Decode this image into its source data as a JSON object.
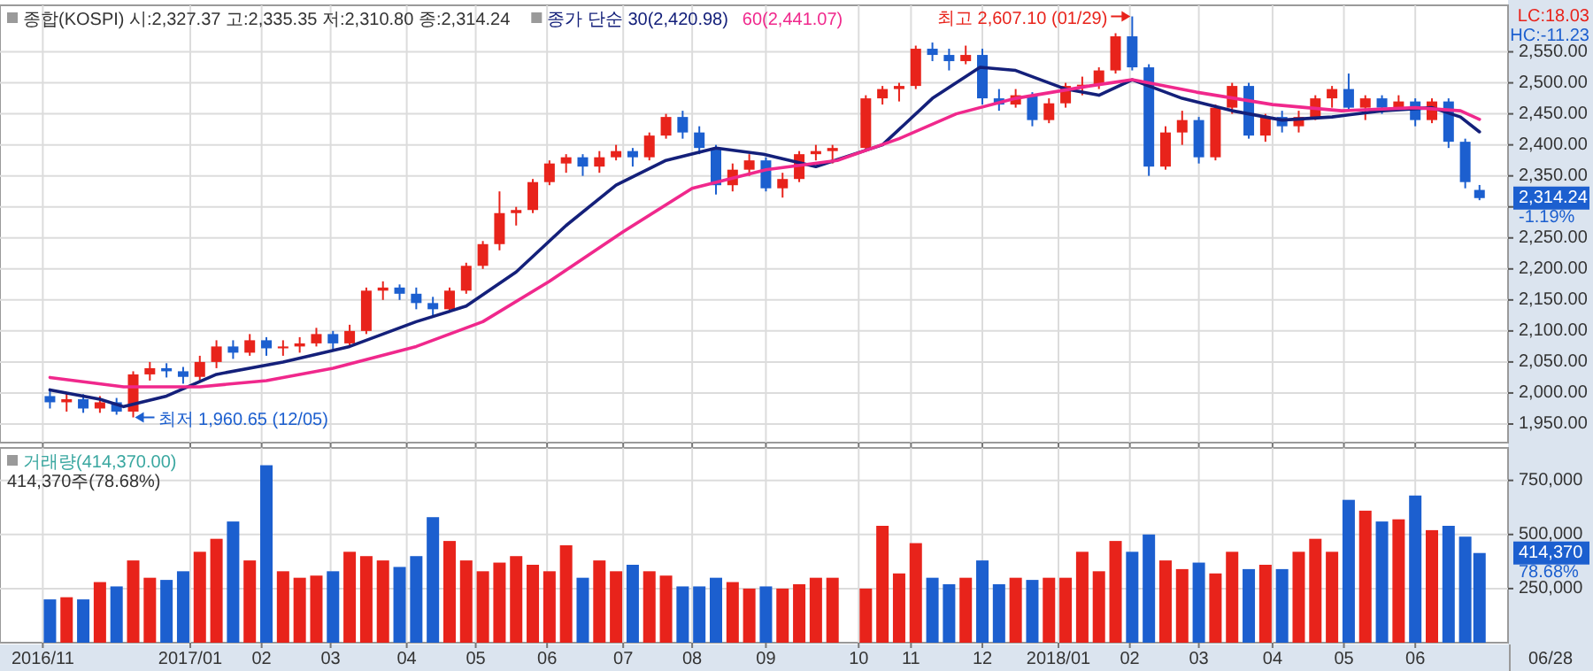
{
  "chart_data": [
    {
      "type": "candlestick",
      "title": "종합(KOSPI) 시:2,327.37 고:2,335.35 저:2,310.80 종:2,314.24",
      "legend": "top",
      "grid": true,
      "tick_labels": "y",
      "x": [
        "2016-11-04",
        "2016-11-11",
        "2016-11-18",
        "2016-11-25",
        "2016-12-02",
        "2016-12-09",
        "2016-12-16",
        "2016-12-23",
        "2016-12-30",
        "2017-01-06",
        "2017-01-13",
        "2017-01-20",
        "2017-01-27",
        "2017-02-03",
        "2017-02-10",
        "2017-02-17",
        "2017-02-24",
        "2017-03-03",
        "2017-03-10",
        "2017-03-17",
        "2017-03-24",
        "2017-03-31",
        "2017-04-07",
        "2017-04-14",
        "2017-04-21",
        "2017-04-28",
        "2017-05-05",
        "2017-05-12",
        "2017-05-19",
        "2017-05-26",
        "2017-06-02",
        "2017-06-09",
        "2017-06-16",
        "2017-06-23",
        "2017-06-30",
        "2017-07-07",
        "2017-07-14",
        "2017-07-21",
        "2017-07-28",
        "2017-08-04",
        "2017-08-11",
        "2017-08-18",
        "2017-08-25",
        "2017-09-01",
        "2017-09-08",
        "2017-09-15",
        "2017-09-22",
        "2017-09-29",
        "2017-10-13",
        "2017-10-20",
        "2017-10-27",
        "2017-11-03",
        "2017-11-10",
        "2017-11-17",
        "2017-11-24",
        "2017-12-01",
        "2017-12-08",
        "2017-12-15",
        "2017-12-22",
        "2017-12-29",
        "2018-01-05",
        "2018-01-12",
        "2018-01-19",
        "2018-01-26",
        "2018-02-02",
        "2018-02-09",
        "2018-02-16",
        "2018-02-23",
        "2018-03-02",
        "2018-03-09",
        "2018-03-16",
        "2018-03-23",
        "2018-03-30",
        "2018-04-06",
        "2018-04-13",
        "2018-04-20",
        "2018-04-27",
        "2018-05-04",
        "2018-05-11",
        "2018-05-18",
        "2018-05-25",
        "2018-06-01",
        "2018-06-08",
        "2018-06-15",
        "2018-06-22",
        "2018-06-28"
      ],
      "ohlc": [
        [
          1995,
          2005,
          1975,
          1985
        ],
        [
          1985,
          2000,
          1970,
          1990
        ],
        [
          1990,
          1998,
          1968,
          1975
        ],
        [
          1975,
          1995,
          1968,
          1985
        ],
        [
          1985,
          1992,
          1965,
          1970
        ],
        [
          1970,
          2035,
          1960.65,
          2030
        ],
        [
          2030,
          2050,
          2020,
          2040
        ],
        [
          2040,
          2048,
          2025,
          2035
        ],
        [
          2035,
          2042,
          2015,
          2026
        ],
        [
          2026,
          2060,
          2020,
          2050
        ],
        [
          2050,
          2085,
          2040,
          2075
        ],
        [
          2075,
          2085,
          2055,
          2065
        ],
        [
          2065,
          2095,
          2060,
          2085
        ],
        [
          2085,
          2090,
          2060,
          2072
        ],
        [
          2072,
          2085,
          2060,
          2075
        ],
        [
          2075,
          2090,
          2065,
          2080
        ],
        [
          2080,
          2105,
          2075,
          2095
        ],
        [
          2095,
          2100,
          2070,
          2080
        ],
        [
          2080,
          2110,
          2075,
          2100
        ],
        [
          2100,
          2170,
          2095,
          2165
        ],
        [
          2165,
          2180,
          2150,
          2170
        ],
        [
          2170,
          2175,
          2150,
          2160
        ],
        [
          2160,
          2170,
          2135,
          2145
        ],
        [
          2145,
          2155,
          2125,
          2135
        ],
        [
          2135,
          2170,
          2130,
          2165
        ],
        [
          2165,
          2210,
          2160,
          2205
        ],
        [
          2205,
          2245,
          2200,
          2240
        ],
        [
          2240,
          2325,
          2230,
          2290
        ],
        [
          2290,
          2300,
          2270,
          2295
        ],
        [
          2295,
          2345,
          2290,
          2340
        ],
        [
          2340,
          2375,
          2335,
          2370
        ],
        [
          2370,
          2385,
          2355,
          2380
        ],
        [
          2380,
          2385,
          2350,
          2365
        ],
        [
          2365,
          2390,
          2355,
          2380
        ],
        [
          2380,
          2400,
          2375,
          2390
        ],
        [
          2390,
          2395,
          2365,
          2380
        ],
        [
          2380,
          2420,
          2375,
          2415
        ],
        [
          2415,
          2450,
          2410,
          2445
        ],
        [
          2445,
          2455,
          2410,
          2420
        ],
        [
          2420,
          2430,
          2385,
          2395
        ],
        [
          2395,
          2400,
          2320,
          2335
        ],
        [
          2335,
          2370,
          2325,
          2360
        ],
        [
          2360,
          2385,
          2350,
          2375
        ],
        [
          2375,
          2380,
          2325,
          2330
        ],
        [
          2330,
          2355,
          2315,
          2345
        ],
        [
          2345,
          2390,
          2340,
          2385
        ],
        [
          2385,
          2400,
          2375,
          2390
        ],
        [
          2390,
          2400,
          2370,
          2395
        ],
        [
          2395,
          2480,
          2390,
          2475
        ],
        [
          2475,
          2495,
          2465,
          2490
        ],
        [
          2490,
          2500,
          2470,
          2495
        ],
        [
          2495,
          2560,
          2490,
          2555
        ],
        [
          2555,
          2565,
          2535,
          2545
        ],
        [
          2545,
          2555,
          2520,
          2535
        ],
        [
          2535,
          2560,
          2530,
          2545
        ],
        [
          2545,
          2555,
          2465,
          2475
        ],
        [
          2475,
          2490,
          2455,
          2465
        ],
        [
          2465,
          2490,
          2460,
          2480
        ],
        [
          2480,
          2485,
          2430,
          2440
        ],
        [
          2440,
          2475,
          2435,
          2467
        ],
        [
          2467,
          2500,
          2460,
          2495
        ],
        [
          2495,
          2510,
          2480,
          2497
        ],
        [
          2497,
          2525,
          2490,
          2520
        ],
        [
          2520,
          2580,
          2515,
          2575
        ],
        [
          2575,
          2607.1,
          2520,
          2525
        ],
        [
          2525,
          2530,
          2350,
          2365
        ],
        [
          2365,
          2430,
          2360,
          2420
        ],
        [
          2420,
          2455,
          2400,
          2440
        ],
        [
          2440,
          2445,
          2370,
          2380
        ],
        [
          2380,
          2465,
          2375,
          2460
        ],
        [
          2460,
          2500,
          2450,
          2495
        ],
        [
          2495,
          2500,
          2410,
          2415
        ],
        [
          2415,
          2450,
          2405,
          2445
        ],
        [
          2445,
          2455,
          2420,
          2430
        ],
        [
          2430,
          2455,
          2420,
          2445
        ],
        [
          2445,
          2480,
          2440,
          2475
        ],
        [
          2475,
          2495,
          2460,
          2490
        ],
        [
          2490,
          2515,
          2455,
          2460
        ],
        [
          2460,
          2480,
          2440,
          2475
        ],
        [
          2475,
          2480,
          2450,
          2460
        ],
        [
          2460,
          2480,
          2455,
          2470
        ],
        [
          2470,
          2475,
          2430,
          2440
        ],
        [
          2440,
          2475,
          2435,
          2470
        ],
        [
          2470,
          2475,
          2395,
          2405
        ],
        [
          2405,
          2410,
          2330,
          2340
        ],
        [
          2327.37,
          2335.35,
          2310.8,
          2314.24
        ]
      ],
      "colors": [
        "#1c5fcf",
        "#e8231b",
        "#1c5fcf",
        "#e8231b",
        "#1c5fcf",
        "#e8231b",
        "#e8231b",
        "#1c5fcf",
        "#1c5fcf",
        "#e8231b",
        "#e8231b",
        "#1c5fcf",
        "#e8231b",
        "#1c5fcf",
        "#e8231b",
        "#e8231b",
        "#e8231b",
        "#1c5fcf",
        "#e8231b",
        "#e8231b",
        "#e8231b",
        "#1c5fcf",
        "#1c5fcf",
        "#1c5fcf",
        "#e8231b",
        "#e8231b",
        "#e8231b",
        "#e8231b",
        "#e8231b",
        "#e8231b",
        "#e8231b",
        "#e8231b",
        "#1c5fcf",
        "#e8231b",
        "#e8231b",
        "#1c5fcf",
        "#e8231b",
        "#e8231b",
        "#1c5fcf",
        "#1c5fcf",
        "#1c5fcf",
        "#e8231b",
        "#e8231b",
        "#1c5fcf",
        "#e8231b",
        "#e8231b",
        "#e8231b",
        "#e8231b",
        "#e8231b",
        "#e8231b",
        "#e8231b",
        "#e8231b",
        "#1c5fcf",
        "#1c5fcf",
        "#e8231b",
        "#1c5fcf",
        "#1c5fcf",
        "#e8231b",
        "#1c5fcf",
        "#e8231b",
        "#e8231b",
        "#e8231b",
        "#e8231b",
        "#e8231b",
        "#1c5fcf",
        "#1c5fcf",
        "#e8231b",
        "#e8231b",
        "#1c5fcf",
        "#e8231b",
        "#e8231b",
        "#1c5fcf",
        "#e8231b",
        "#1c5fcf",
        "#e8231b",
        "#e8231b",
        "#e8231b",
        "#1c5fcf",
        "#e8231b",
        "#1c5fcf",
        "#e8231b",
        "#1c5fcf",
        "#e8231b",
        "#1c5fcf",
        "#1c5fcf",
        "#1c5fcf"
      ],
      "series": [
        {
          "name": "종가 단순 30(2,420.98)",
          "type": "line",
          "color": "#14207a",
          "x": [
            "2016-11-04",
            "2016-11-25",
            "2016-12-05",
            "2016-12-23",
            "2017-01-13",
            "2017-02-10",
            "2017-03-10",
            "2017-04-07",
            "2017-04-28",
            "2017-05-19",
            "2017-06-09",
            "2017-06-30",
            "2017-07-21",
            "2017-08-11",
            "2017-08-31",
            "2017-09-22",
            "2017-10-20",
            "2017-11-10",
            "2017-11-30",
            "2017-12-15",
            "2018-01-05",
            "2018-01-19",
            "2018-02-02",
            "2018-02-23",
            "2018-03-16",
            "2018-04-06",
            "2018-04-27",
            "2018-05-18",
            "2018-06-08",
            "2018-06-20",
            "2018-06-28"
          ],
          "values": [
            2005,
            1990,
            1978,
            1995,
            2030,
            2050,
            2075,
            2115,
            2140,
            2195,
            2270,
            2335,
            2375,
            2395,
            2385,
            2365,
            2400,
            2475,
            2525,
            2520,
            2490,
            2480,
            2505,
            2475,
            2455,
            2440,
            2445,
            2455,
            2460,
            2445,
            2420.98
          ]
        },
        {
          "name": "60(2,441.07)",
          "type": "line",
          "color": "#f0288c",
          "x": [
            "2016-11-04",
            "2016-12-05",
            "2017-01-06",
            "2017-02-03",
            "2017-03-03",
            "2017-04-07",
            "2017-05-05",
            "2017-06-02",
            "2017-07-03",
            "2017-08-01",
            "2017-09-01",
            "2017-10-01",
            "2017-10-27",
            "2017-11-20",
            "2017-12-15",
            "2018-01-15",
            "2018-02-02",
            "2018-03-01",
            "2018-04-02",
            "2018-05-01",
            "2018-06-01",
            "2018-06-20",
            "2018-06-28"
          ],
          "values": [
            2025,
            2010,
            2010,
            2020,
            2040,
            2075,
            2115,
            2180,
            2260,
            2330,
            2360,
            2375,
            2410,
            2450,
            2475,
            2495,
            2505,
            2485,
            2465,
            2455,
            2460,
            2455,
            2441.07
          ]
        }
      ],
      "xlim": [
        "2016-10-14",
        "2018-07-10"
      ],
      "xticks": [
        {
          "value": "2016-11-01",
          "label": null
        },
        {
          "value": "2017-01-02",
          "label": null
        },
        {
          "value": "2017-02-01",
          "label": null
        },
        {
          "value": "2017-03-02",
          "label": null
        },
        {
          "value": "2017-04-03",
          "label": null
        },
        {
          "value": "2017-05-02",
          "label": null
        },
        {
          "value": "2017-06-01",
          "label": null
        },
        {
          "value": "2017-07-03",
          "label": null
        },
        {
          "value": "2017-08-01",
          "label": null
        },
        {
          "value": "2017-09-01",
          "label": null
        },
        {
          "value": "2017-10-10",
          "label": null
        },
        {
          "value": "2017-11-01",
          "label": null
        },
        {
          "value": "2017-12-01",
          "label": null
        },
        {
          "value": "2018-01-02",
          "label": null
        },
        {
          "value": "2018-02-01",
          "label": null
        },
        {
          "value": "2018-03-02",
          "label": null
        },
        {
          "value": "2018-04-02",
          "label": null
        },
        {
          "value": "2018-05-02",
          "label": null
        },
        {
          "value": "2018-06-01",
          "label": null
        }
      ],
      "ylim": [
        1920,
        2625
      ],
      "yticks": [
        {
          "value": 1950,
          "label": "1,950.00"
        },
        {
          "value": 2000,
          "label": "2,000.00"
        },
        {
          "value": 2050,
          "label": "2,050.00"
        },
        {
          "value": 2100,
          "label": "2,100.00"
        },
        {
          "value": 2150,
          "label": "2,150.00"
        },
        {
          "value": 2200,
          "label": "2,200.00"
        },
        {
          "value": 2250,
          "label": "2,250.00"
        },
        {
          "value": 2300,
          "label": null
        },
        {
          "value": 2350,
          "label": "2,350.00"
        },
        {
          "value": 2400,
          "label": "2,400.00"
        },
        {
          "value": 2450,
          "label": "2,450.00"
        },
        {
          "value": 2500,
          "label": "2,500.00"
        },
        {
          "value": 2550,
          "label": "2,550.00"
        }
      ],
      "annotations": [
        {
          "text": "최고 2,607.10 (01/29)",
          "x": "2018-02-02",
          "y": 2607.1
        },
        {
          "text": "최저 1,960.65 (12/05)",
          "x": "2016-12-09",
          "y": 1960.65
        },
        "LC:18.03",
        "HC:-11.23",
        "2,314.24",
        "-1.19%"
      ]
    },
    {
      "type": "bar",
      "title": "거래량(414,370.00)",
      "subtitle": "414,370주(78.68%)",
      "grid": true,
      "x": [
        "2016-11-04",
        "2016-11-11",
        "2016-11-18",
        "2016-11-25",
        "2016-12-02",
        "2016-12-09",
        "2016-12-16",
        "2016-12-23",
        "2016-12-30",
        "2017-01-06",
        "2017-01-13",
        "2017-01-20",
        "2017-01-27",
        "2017-02-03",
        "2017-02-10",
        "2017-02-17",
        "2017-02-24",
        "2017-03-03",
        "2017-03-10",
        "2017-03-17",
        "2017-03-24",
        "2017-03-31",
        "2017-04-07",
        "2017-04-14",
        "2017-04-21",
        "2017-04-28",
        "2017-05-05",
        "2017-05-12",
        "2017-05-19",
        "2017-05-26",
        "2017-06-02",
        "2017-06-09",
        "2017-06-16",
        "2017-06-23",
        "2017-06-30",
        "2017-07-07",
        "2017-07-14",
        "2017-07-21",
        "2017-07-28",
        "2017-08-04",
        "2017-08-11",
        "2017-08-18",
        "2017-08-25",
        "2017-09-01",
        "2017-09-08",
        "2017-09-15",
        "2017-09-22",
        "2017-09-29",
        "2017-10-13",
        "2017-10-20",
        "2017-10-27",
        "2017-11-03",
        "2017-11-10",
        "2017-11-17",
        "2017-11-24",
        "2017-12-01",
        "2017-12-08",
        "2017-12-15",
        "2017-12-22",
        "2017-12-29",
        "2018-01-05",
        "2018-01-12",
        "2018-01-19",
        "2018-01-26",
        "2018-02-02",
        "2018-02-09",
        "2018-02-16",
        "2018-02-23",
        "2018-03-02",
        "2018-03-09",
        "2018-03-16",
        "2018-03-23",
        "2018-03-30",
        "2018-04-06",
        "2018-04-13",
        "2018-04-20",
        "2018-04-27",
        "2018-05-04",
        "2018-05-11",
        "2018-05-18",
        "2018-05-25",
        "2018-06-01",
        "2018-06-08",
        "2018-06-15",
        "2018-06-22",
        "2018-06-28"
      ],
      "values": [
        200000,
        210000,
        200000,
        280000,
        260000,
        380000,
        300000,
        290000,
        330000,
        420000,
        480000,
        560000,
        380000,
        820000,
        330000,
        300000,
        310000,
        330000,
        420000,
        400000,
        380000,
        350000,
        400000,
        580000,
        470000,
        380000,
        330000,
        370000,
        400000,
        360000,
        330000,
        450000,
        300000,
        380000,
        330000,
        360000,
        330000,
        310000,
        260000,
        260000,
        300000,
        280000,
        250000,
        260000,
        250000,
        270000,
        300000,
        300000,
        250000,
        540000,
        320000,
        460000,
        300000,
        270000,
        300000,
        380000,
        270000,
        300000,
        290000,
        300000,
        300000,
        420000,
        330000,
        470000,
        420000,
        500000,
        380000,
        340000,
        370000,
        320000,
        420000,
        340000,
        360000,
        340000,
        420000,
        480000,
        420000,
        660000,
        610000,
        560000,
        570000,
        680000,
        520000,
        540000,
        490000,
        414370
      ],
      "colors": [
        "#1c5fcf",
        "#e8231b",
        "#1c5fcf",
        "#e8231b",
        "#1c5fcf",
        "#e8231b",
        "#e8231b",
        "#1c5fcf",
        "#1c5fcf",
        "#e8231b",
        "#e8231b",
        "#1c5fcf",
        "#e8231b",
        "#1c5fcf",
        "#e8231b",
        "#e8231b",
        "#e8231b",
        "#1c5fcf",
        "#e8231b",
        "#e8231b",
        "#e8231b",
        "#1c5fcf",
        "#1c5fcf",
        "#1c5fcf",
        "#e8231b",
        "#e8231b",
        "#e8231b",
        "#e8231b",
        "#e8231b",
        "#e8231b",
        "#e8231b",
        "#e8231b",
        "#1c5fcf",
        "#e8231b",
        "#e8231b",
        "#1c5fcf",
        "#e8231b",
        "#e8231b",
        "#1c5fcf",
        "#1c5fcf",
        "#1c5fcf",
        "#e8231b",
        "#e8231b",
        "#1c5fcf",
        "#e8231b",
        "#e8231b",
        "#e8231b",
        "#e8231b",
        "#e8231b",
        "#e8231b",
        "#e8231b",
        "#e8231b",
        "#1c5fcf",
        "#1c5fcf",
        "#e8231b",
        "#1c5fcf",
        "#1c5fcf",
        "#e8231b",
        "#1c5fcf",
        "#e8231b",
        "#e8231b",
        "#e8231b",
        "#e8231b",
        "#e8231b",
        "#1c5fcf",
        "#1c5fcf",
        "#e8231b",
        "#e8231b",
        "#1c5fcf",
        "#e8231b",
        "#e8231b",
        "#1c5fcf",
        "#e8231b",
        "#1c5fcf",
        "#e8231b",
        "#e8231b",
        "#e8231b",
        "#1c5fcf",
        "#e8231b",
        "#1c5fcf",
        "#e8231b",
        "#1c5fcf",
        "#e8231b",
        "#1c5fcf",
        "#1c5fcf",
        "#1c5fcf"
      ],
      "xlim": [
        "2016-10-14",
        "2018-07-10"
      ],
      "xticks": [
        {
          "value": "2016-11-01",
          "label": "2016/11"
        },
        {
          "value": "2017-01-02",
          "label": "2017/01"
        },
        {
          "value": "2017-02-01",
          "label": "02"
        },
        {
          "value": "2017-03-02",
          "label": "03"
        },
        {
          "value": "2017-04-03",
          "label": "04"
        },
        {
          "value": "2017-05-02",
          "label": "05"
        },
        {
          "value": "2017-06-01",
          "label": "06"
        },
        {
          "value": "2017-07-03",
          "label": "07"
        },
        {
          "value": "2017-08-01",
          "label": "08"
        },
        {
          "value": "2017-09-01",
          "label": "09"
        },
        {
          "value": "2017-10-10",
          "label": "10"
        },
        {
          "value": "2017-11-01",
          "label": "11"
        },
        {
          "value": "2017-12-01",
          "label": "12"
        },
        {
          "value": "2018-01-02",
          "label": "2018/01"
        },
        {
          "value": "2018-02-01",
          "label": "02"
        },
        {
          "value": "2018-03-02",
          "label": "03"
        },
        {
          "value": "2018-04-02",
          "label": "04"
        },
        {
          "value": "2018-05-02",
          "label": "05"
        },
        {
          "value": "2018-06-01",
          "label": "06"
        }
      ],
      "ylim": [
        0,
        900000
      ],
      "yticks": [
        {
          "value": 250000,
          "label": "250,000"
        },
        {
          "value": 500000,
          "label": "500,000"
        },
        {
          "value": 750000,
          "label": "750,000"
        }
      ],
      "annotations": [
        "414,370",
        "78.68%",
        "06/28"
      ]
    }
  ]
}
